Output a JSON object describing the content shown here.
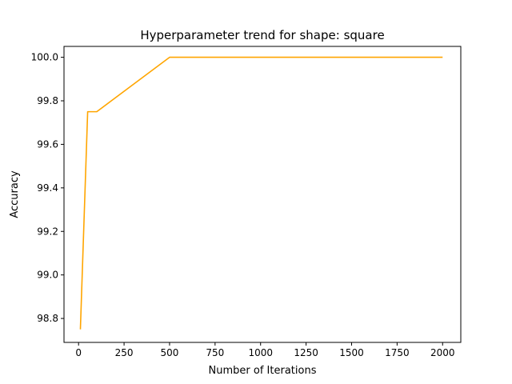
{
  "chart_data": {
    "type": "line",
    "title": "Hyperparameter trend for shape: square",
    "xlabel": "Number of Iterations",
    "ylabel": "Accuracy",
    "xlim": [
      -80,
      2100
    ],
    "ylim": [
      98.69,
      100.05
    ],
    "x_ticks": [
      0,
      250,
      500,
      750,
      1000,
      1250,
      1500,
      1750,
      2000
    ],
    "y_ticks": [
      98.8,
      99.0,
      99.2,
      99.4,
      99.6,
      99.8,
      100.0
    ],
    "x_tick_labels": [
      "0",
      "250",
      "500",
      "750",
      "1000",
      "1250",
      "1500",
      "1750",
      "2000"
    ],
    "y_tick_labels": [
      "98.8",
      "99.0",
      "99.2",
      "99.4",
      "99.6",
      "99.8",
      "100.0"
    ],
    "grid": false,
    "series": [
      {
        "color": "#ffa500",
        "x": [
          10,
          50,
          100,
          500,
          1000,
          2000
        ],
        "y": [
          98.75,
          99.75,
          99.75,
          100.0,
          100.0,
          100.0
        ]
      }
    ]
  }
}
